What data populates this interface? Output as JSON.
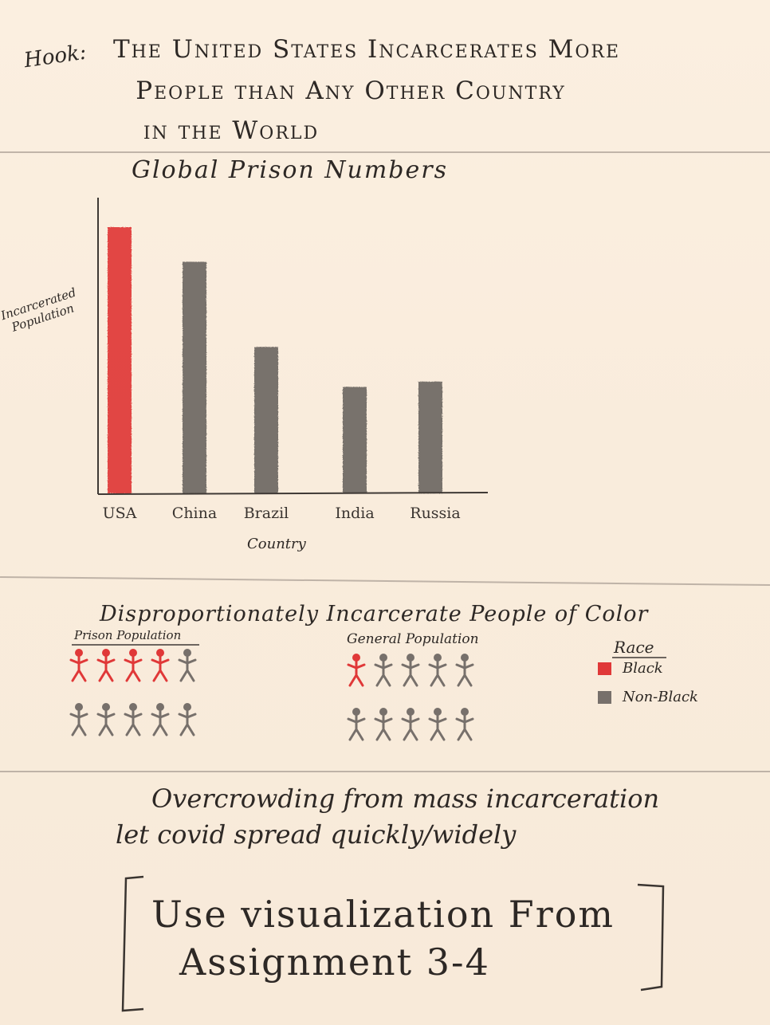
{
  "hook": {
    "label": "Hook:",
    "line1": "The United States Incarcerates More",
    "line2": "People than Any Other Country",
    "line3": "in the World"
  },
  "chart_data": {
    "type": "bar",
    "title": "Global Prison Numbers",
    "xlabel": "Country",
    "ylabel": "Incarcerated Population",
    "categories": [
      "USA",
      "China",
      "Brazil",
      "India",
      "Russia"
    ],
    "values": [
      100,
      87,
      55,
      40,
      42
    ],
    "highlight_color": "#e03838",
    "bar_color": "#6e6864",
    "grid": false
  },
  "section2": {
    "title": "Disproportionately Incarcerate People of Color",
    "prison_label": "Prison Population",
    "general_label": "General Population",
    "prison_figures": [
      "black",
      "black",
      "black",
      "black",
      "non-black",
      "non-black",
      "non-black",
      "non-black",
      "non-black",
      "non-black"
    ],
    "general_figures": [
      "black",
      "non-black",
      "non-black",
      "non-black",
      "non-black",
      "non-black",
      "non-black",
      "non-black",
      "non-black",
      "non-black"
    ],
    "legend": {
      "title": "Race",
      "black_label": "Black",
      "nonblack_label": "Non-Black",
      "black_color": "#e03838",
      "nonblack_color": "#77706b"
    }
  },
  "covid": {
    "line1": "Overcrowding from mass incarceration",
    "line2": "let covid spread quickly/widely"
  },
  "note": {
    "line1": "Use visualization From",
    "line2": "Assignment 3-4"
  }
}
